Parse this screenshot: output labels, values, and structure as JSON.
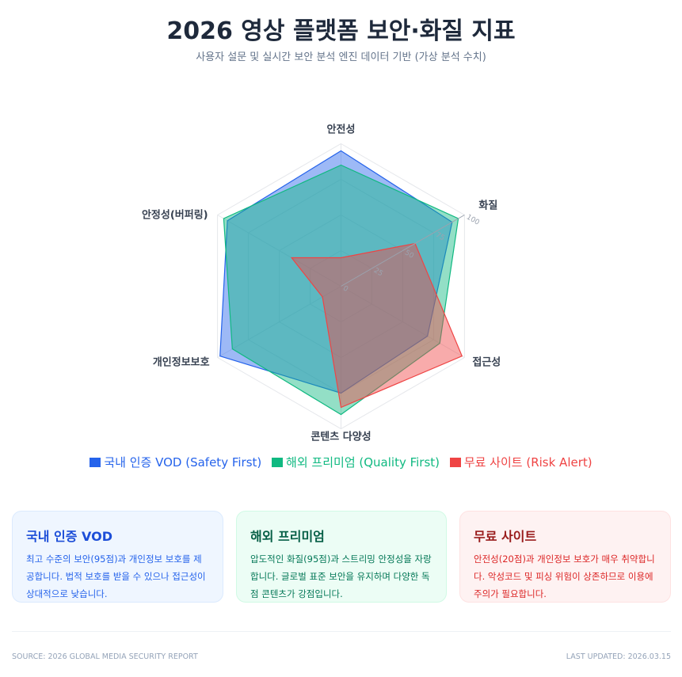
{
  "header": {
    "title": "2026 영상 플랫폼 보안·화질 지표",
    "subtitle": "사용자 설문 및 실시간 보안 분석 엔진 데이터 기반 (가상 분석 수치)"
  },
  "chart_data": {
    "type": "radar",
    "categories": [
      "안전성",
      "화질",
      "접근성",
      "콘텐츠 다양성",
      "개인정보보호",
      "안정성(버퍼링)"
    ],
    "rlim": [
      0,
      100
    ],
    "ticks": [
      "0",
      "25",
      "50",
      "75",
      "100"
    ],
    "legend": "bottom",
    "series": [
      {
        "name": "국내 인증 VOD (Safety First)",
        "color": "#2563eb",
        "values": [
          95,
          90,
          70,
          75,
          98,
          92
        ]
      },
      {
        "name": "해외 프리미엄 (Quality First)",
        "color": "#10b981",
        "values": [
          85,
          95,
          80,
          90,
          88,
          95
        ]
      },
      {
        "name": "무료 사이트 (Risk Alert)",
        "color": "#ef4444",
        "values": [
          20,
          60,
          98,
          85,
          15,
          40
        ]
      }
    ]
  },
  "cards": [
    {
      "title": "국내 인증 VOD",
      "text": "최고 수준의 보안(95점)과 개인정보 보호를 제공합니다. 법적 보호를 받을 수 있으나 접근성이 상대적으로 낮습니다."
    },
    {
      "title": "해외 프리미엄",
      "text": "압도적인 화질(95점)과 스트리밍 안정성을 자랑합니다. 글로벌 표준 보안을 유지하며 다양한 독점 콘텐츠가 강점입니다."
    },
    {
      "title": "무료 사이트",
      "text": "안전성(20점)과 개인정보 보호가 매우 취약합니다. 악성코드 및 피싱 위험이 상존하므로 이용에 주의가 필요합니다."
    }
  ],
  "footer": {
    "source": "SOURCE: 2026 GLOBAL MEDIA SECURITY REPORT",
    "updated": "LAST UPDATED: 2026.03.15"
  }
}
